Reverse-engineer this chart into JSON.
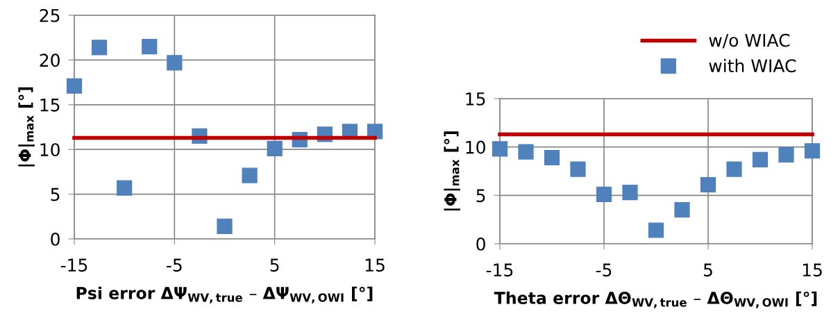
{
  "chart_data": [
    {
      "type": "scatter",
      "xlabel": "Psi error ΔΨ$_{WV,true}$ – ΔΨ$_{WV,OWI}$ [°]",
      "ylabel": "|Φ|$_{max}$ [°]",
      "xlim": [
        -15,
        15
      ],
      "xticks": [
        -15,
        -5,
        5,
        15
      ],
      "ylim": [
        0,
        25
      ],
      "yticks": [
        0,
        5,
        10,
        15,
        20,
        25
      ],
      "grid": true,
      "series": [
        {
          "type": "line",
          "marker": "none",
          "color": "#c00000",
          "x": [
            -15,
            15
          ],
          "values": [
            11.3,
            11.3
          ]
        },
        {
          "marker": "square",
          "color": "#4f81bd",
          "x": [
            -15,
            -12.5,
            -10,
            -7.5,
            -5,
            -2.5,
            0,
            2.5,
            5,
            7.5,
            10,
            12.5,
            15
          ],
          "values": [
            17.1,
            21.4,
            5.7,
            21.5,
            19.7,
            11.5,
            1.4,
            7.1,
            10.1,
            11.1,
            11.7,
            12.0,
            12.0
          ]
        }
      ]
    },
    {
      "type": "scatter",
      "xlabel": "Theta error ΔΘ$_{WV,true}$ – ΔΘ$_{WV,OWI}$ [°]",
      "ylabel": "|Φ|$_{max}$ [°]",
      "xlim": [
        -15,
        15
      ],
      "xticks": [
        -15,
        -5,
        5,
        15
      ],
      "ylim": [
        0,
        15
      ],
      "yticks": [
        0,
        5,
        10,
        15
      ],
      "grid": true,
      "legend": "top right",
      "series": [
        {
          "type": "line",
          "marker": "none",
          "name": "w/o WIAC",
          "color": "#c00000",
          "x": [
            -15,
            15
          ],
          "values": [
            11.3,
            11.3
          ]
        },
        {
          "marker": "square",
          "name": "with WIAC",
          "color": "#4f81bd",
          "x": [
            -15,
            -12.5,
            -10,
            -7.5,
            -5,
            -2.5,
            0,
            2.5,
            5,
            7.5,
            10,
            12.5,
            15
          ],
          "values": [
            9.8,
            9.5,
            8.9,
            7.7,
            5.1,
            5.3,
            1.4,
            3.5,
            6.1,
            7.7,
            8.7,
            9.2,
            9.6
          ]
        }
      ]
    }
  ]
}
